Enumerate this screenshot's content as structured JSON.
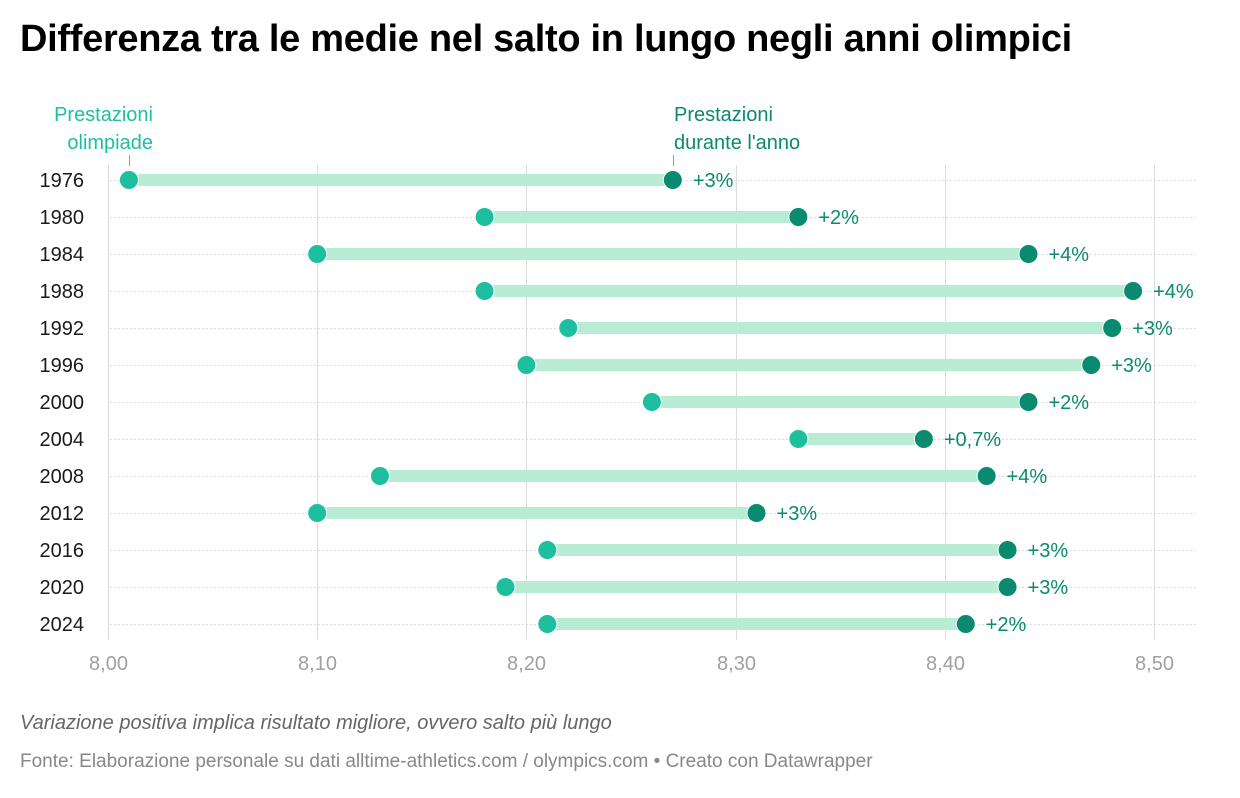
{
  "title": "Differenza tra le medie nel salto in lungo negli anni olimpici",
  "annotations": {
    "olympic_line1": "Prestazioni",
    "olympic_line2": "olimpiade",
    "year_line1": "Prestazioni",
    "year_line2": "durante l'anno"
  },
  "note": "Variazione positiva implica risultato migliore, ovvero salto più lungo",
  "source": {
    "prefix": "Fonte: ",
    "text": "Elaborazione personale su dati alltime-athletics.com / olympics.com",
    "separator": " • ",
    "credit": "Creato con Datawrapper"
  },
  "colors": {
    "olympic": "#1dbf9f",
    "year": "#0a8a6e",
    "bar": "#b8ecd4",
    "label": "#0a8a6e",
    "annotation_olympic": "#1dbf9f",
    "annotation_year": "#0a8a6e"
  },
  "chart_data": {
    "type": "dot-plot",
    "xlim": [
      8.0,
      8.5
    ],
    "x_ticks": [
      8.0,
      8.1,
      8.2,
      8.3,
      8.4,
      8.5
    ],
    "x_tick_labels": [
      "8,00",
      "8,10",
      "8,20",
      "8,30",
      "8,40",
      "8,50"
    ],
    "grid": true,
    "series": [
      {
        "name": "Prestazioni olimpiade",
        "key": "olympic"
      },
      {
        "name": "Prestazioni durante l'anno",
        "key": "year"
      }
    ],
    "rows": [
      {
        "year": "1976",
        "olympic": 8.01,
        "year_avg": 8.27,
        "label": "+3%"
      },
      {
        "year": "1980",
        "olympic": 8.18,
        "year_avg": 8.33,
        "label": "+2%"
      },
      {
        "year": "1984",
        "olympic": 8.1,
        "year_avg": 8.44,
        "label": "+4%"
      },
      {
        "year": "1988",
        "olympic": 8.18,
        "year_avg": 8.49,
        "label": "+4%"
      },
      {
        "year": "1992",
        "olympic": 8.22,
        "year_avg": 8.48,
        "label": "+3%"
      },
      {
        "year": "1996",
        "olympic": 8.2,
        "year_avg": 8.47,
        "label": "+3%"
      },
      {
        "year": "2000",
        "olympic": 8.26,
        "year_avg": 8.44,
        "label": "+2%"
      },
      {
        "year": "2004",
        "olympic": 8.33,
        "year_avg": 8.39,
        "label": "+0,7%"
      },
      {
        "year": "2008",
        "olympic": 8.13,
        "year_avg": 8.42,
        "label": "+4%"
      },
      {
        "year": "2012",
        "olympic": 8.1,
        "year_avg": 8.31,
        "label": "+3%"
      },
      {
        "year": "2016",
        "olympic": 8.21,
        "year_avg": 8.43,
        "label": "+3%"
      },
      {
        "year": "2020",
        "olympic": 8.19,
        "year_avg": 8.43,
        "label": "+3%"
      },
      {
        "year": "2024",
        "olympic": 8.21,
        "year_avg": 8.41,
        "label": "+2%"
      }
    ]
  }
}
